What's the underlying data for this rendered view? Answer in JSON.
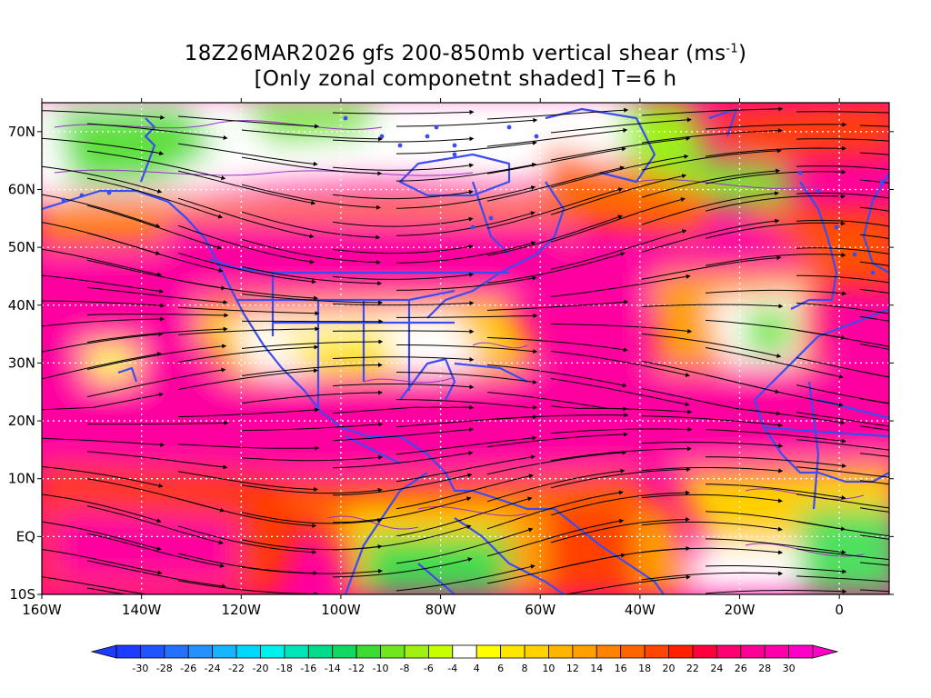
{
  "title": {
    "line1_prefix": "18Z26MAR2026 gfs 200-850mb vertical shear (ms",
    "line1_sup": "-1",
    "line1_suffix": ")",
    "line2": "[Only zonal componetnt shaded] T=6 h"
  },
  "map": {
    "lon_range": [
      -160,
      10
    ],
    "lat_range": [
      -10,
      75
    ],
    "lat_ticks": [
      {
        "value": 70,
        "label": "70N"
      },
      {
        "value": 60,
        "label": "60N"
      },
      {
        "value": 50,
        "label": "50N"
      },
      {
        "value": 40,
        "label": "40N"
      },
      {
        "value": 30,
        "label": "30N"
      },
      {
        "value": 20,
        "label": "20N"
      },
      {
        "value": 10,
        "label": "10N"
      },
      {
        "value": 0,
        "label": "EQ"
      },
      {
        "value": -10,
        "label": "10S"
      }
    ],
    "lon_ticks": [
      {
        "value": -160,
        "label": "160W"
      },
      {
        "value": -140,
        "label": "140W"
      },
      {
        "value": -120,
        "label": "120W"
      },
      {
        "value": -100,
        "label": "100W"
      },
      {
        "value": -80,
        "label": "80W"
      },
      {
        "value": -60,
        "label": "60W"
      },
      {
        "value": -40,
        "label": "40W"
      },
      {
        "value": -20,
        "label": "20W"
      },
      {
        "value": 0,
        "label": "0"
      }
    ],
    "colors": {
      "coast": "#3b4cf0",
      "streamline": "#000000",
      "contour": "#9b30c8",
      "grid": "#ffffff"
    }
  },
  "colorbar": {
    "labels": [
      "-30",
      "-28",
      "-26",
      "-24",
      "-22",
      "-20",
      "-18",
      "-16",
      "-14",
      "-12",
      "-10",
      "-8",
      "-6",
      "-4",
      "4",
      "6",
      "8",
      "10",
      "12",
      "14",
      "16",
      "18",
      "20",
      "22",
      "24",
      "26",
      "28",
      "30"
    ],
    "colors": [
      "#1e3cff",
      "#1f54ff",
      "#2272ff",
      "#2590ff",
      "#17b4ff",
      "#00d7ff",
      "#00f0ee",
      "#00e6b8",
      "#00dc8c",
      "#10d860",
      "#3cdc32",
      "#70e61e",
      "#a0f014",
      "#c8ff00",
      "#ffffff",
      "#ffff00",
      "#ffe600",
      "#ffd200",
      "#ffb400",
      "#ffa000",
      "#ff8200",
      "#ff6400",
      "#ff4600",
      "#ff2000",
      "#ff003c",
      "#ff0070",
      "#ff0096",
      "#ff00aa",
      "#ff00c8"
    ]
  }
}
